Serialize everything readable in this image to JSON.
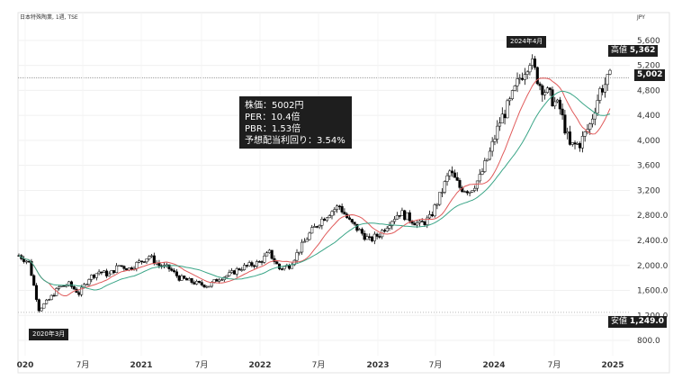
{
  "header": {
    "legend": "日本特殊陶業, 1週, TSE",
    "currency": "JPY"
  },
  "annotations": {
    "note_lines": [
      "株価：5002円",
      "PER：10.4倍",
      "PBR：1.53倍",
      "予想配当利回り：3.54%"
    ],
    "high_callout": "2024年4月",
    "low_callout": "2020年3月",
    "high_tag": {
      "label": "高値",
      "value": "5,362"
    },
    "current_tag": {
      "value": "5,002"
    },
    "low_tag": {
      "label": "安値",
      "value": "1,249.0"
    }
  },
  "chart_data": {
    "type": "candlestick",
    "title": "",
    "interval": "1週",
    "x_tick_labels": [
      "020",
      "7月",
      "2021",
      "7月",
      "2022",
      "7月",
      "2023",
      "7月",
      "2024",
      "7月",
      "2025"
    ],
    "y_tick_labels": [
      "5,600",
      "5,200",
      "4,800",
      "4,400",
      "4,000",
      "3,600",
      "3,200",
      "2,800.0",
      "2,400.0",
      "2,000.0",
      "1,600.0",
      "1,200.0",
      "800.0"
    ],
    "ylim": [
      700,
      5900
    ],
    "price_path": [
      [
        "2020-01",
        2160
      ],
      [
        "2020-02",
        2050
      ],
      [
        "2020-03",
        1300
      ],
      [
        "2020-04",
        1450
      ],
      [
        "2020-05",
        1650
      ],
      [
        "2020-06",
        1700
      ],
      [
        "2020-07",
        1550
      ],
      [
        "2020-08",
        1800
      ],
      [
        "2020-09",
        1900
      ],
      [
        "2020-10",
        1850
      ],
      [
        "2020-11",
        2000
      ],
      [
        "2020-12",
        1950
      ],
      [
        "2021-01",
        2050
      ],
      [
        "2021-02",
        2150
      ],
      [
        "2021-03",
        2000
      ],
      [
        "2021-04",
        1950
      ],
      [
        "2021-05",
        1800
      ],
      [
        "2021-06",
        1750
      ],
      [
        "2021-07",
        1700
      ],
      [
        "2021-08",
        1680
      ],
      [
        "2021-09",
        1800
      ],
      [
        "2021-10",
        1850
      ],
      [
        "2021-11",
        1950
      ],
      [
        "2021-12",
        2000
      ],
      [
        "2022-01",
        2050
      ],
      [
        "2022-02",
        2200
      ],
      [
        "2022-03",
        1950
      ],
      [
        "2022-04",
        2000
      ],
      [
        "2022-05",
        2250
      ],
      [
        "2022-06",
        2500
      ],
      [
        "2022-07",
        2700
      ],
      [
        "2022-08",
        2850
      ],
      [
        "2022-09",
        2950
      ],
      [
        "2022-10",
        2700
      ],
      [
        "2022-11",
        2550
      ],
      [
        "2022-12",
        2400
      ],
      [
        "2023-01",
        2500
      ],
      [
        "2023-02",
        2700
      ],
      [
        "2023-03",
        2850
      ],
      [
        "2023-04",
        2750
      ],
      [
        "2023-05",
        2650
      ],
      [
        "2023-06",
        2750
      ],
      [
        "2023-07",
        3100
      ],
      [
        "2023-08",
        3500
      ],
      [
        "2023-09",
        3250
      ],
      [
        "2023-10",
        3200
      ],
      [
        "2023-11",
        3400
      ],
      [
        "2023-12",
        3800
      ],
      [
        "2024-01",
        4300
      ],
      [
        "2024-02",
        4600
      ],
      [
        "2024-03",
        5000
      ],
      [
        "2024-04",
        5300
      ],
      [
        "2024-05",
        4900
      ],
      [
        "2024-06",
        4700
      ],
      [
        "2024-07",
        4500
      ],
      [
        "2024-08",
        3900
      ],
      [
        "2024-09",
        3950
      ],
      [
        "2024-10",
        4250
      ],
      [
        "2024-11",
        4800
      ],
      [
        "2024-12",
        5002
      ]
    ],
    "series": [
      {
        "name": "",
        "color": "#e05a5a"
      },
      {
        "name": "",
        "color": "#3aa587"
      }
    ],
    "colors": {
      "up": "#ffffff",
      "down": "#000000",
      "wick": "#000000"
    },
    "highlight": {
      "high": 5362,
      "low": 1249,
      "current": 5002
    },
    "grid": true
  }
}
